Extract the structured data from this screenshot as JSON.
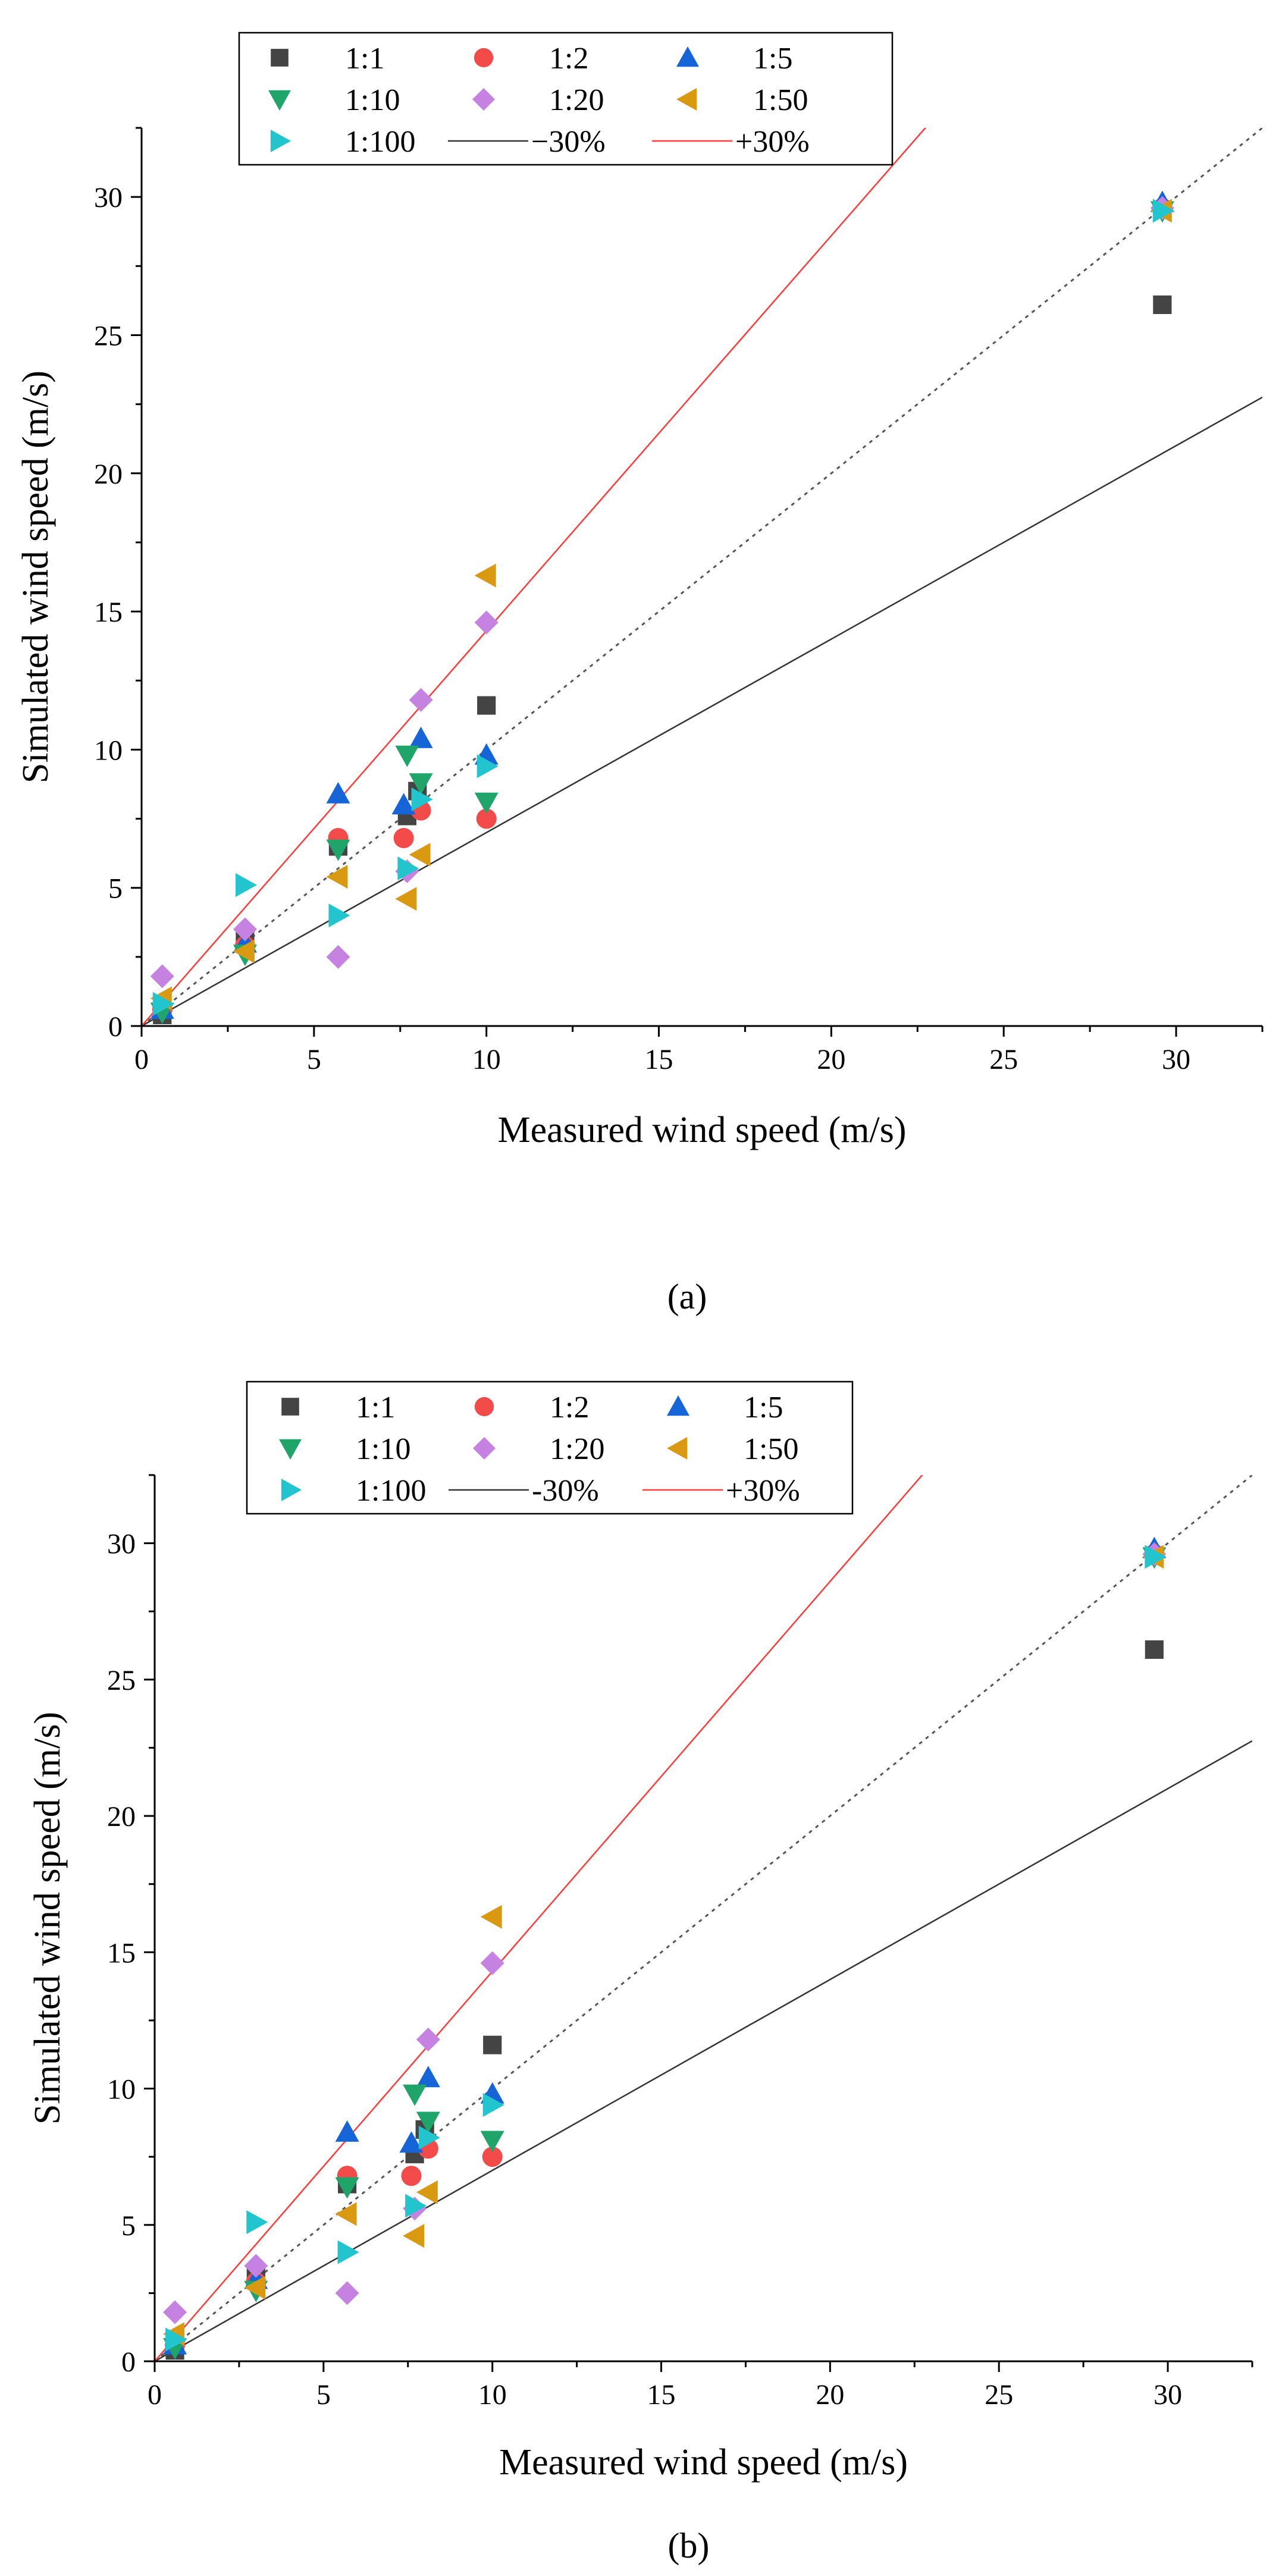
{
  "chart_data": [
    {
      "type": "scatter",
      "panel": "a",
      "caption": "(a)",
      "xlabel": "Measured wind speed (m/s)",
      "ylabel": "Simulated wind speed (m/s)",
      "xlim": [
        0,
        32.5
      ],
      "ylim": [
        0,
        32.5
      ],
      "xticks": [
        0,
        5,
        10,
        15,
        20,
        25,
        30
      ],
      "yticks": [
        0,
        5,
        10,
        15,
        20,
        25,
        30
      ],
      "grid": false,
      "legend_position": "top",
      "legend": [
        "1:1",
        "1:2",
        "1:5",
        "1:10",
        "1:20",
        "1:50",
        "1:100",
        "−30%",
        "+30%"
      ],
      "reference_lines": [
        {
          "name": "1:1 (dotted)",
          "slope": 1.0,
          "color": "#555555",
          "style": "dotted"
        },
        {
          "name": "−30%",
          "slope": 0.7,
          "color": "#333333",
          "style": "solid"
        },
        {
          "name": "+30%",
          "slope": 1.43,
          "color": "#ff3b3b",
          "style": "solid"
        }
      ],
      "series": [
        {
          "name": "1:1",
          "marker": "square",
          "color": "#444444",
          "x": [
            0.6,
            3.0,
            5.7,
            7.7,
            8.0,
            10.0,
            29.6
          ],
          "y": [
            0.4,
            3.1,
            6.5,
            7.6,
            8.5,
            11.6,
            26.1
          ]
        },
        {
          "name": "1:2",
          "marker": "circle",
          "color": "#f34a4a",
          "x": [
            0.6,
            3.0,
            5.7,
            7.6,
            8.1,
            10.0,
            29.6
          ],
          "y": [
            0.6,
            2.9,
            6.8,
            6.8,
            7.8,
            7.5,
            29.6
          ]
        },
        {
          "name": "1:5",
          "marker": "triangle-up",
          "color": "#1565d8",
          "x": [
            0.6,
            3.0,
            5.7,
            7.6,
            8.1,
            10.0,
            29.6
          ],
          "y": [
            0.6,
            3.0,
            8.4,
            8.0,
            10.4,
            9.8,
            29.8
          ]
        },
        {
          "name": "1:10",
          "marker": "triangle-down",
          "color": "#1fa56a",
          "x": [
            0.6,
            3.0,
            5.7,
            7.7,
            8.1,
            10.0,
            29.6
          ],
          "y": [
            0.5,
            2.6,
            6.4,
            9.8,
            8.8,
            8.1,
            29.5
          ]
        },
        {
          "name": "1:20",
          "marker": "diamond",
          "color": "#c582e0",
          "x": [
            0.6,
            3.0,
            5.7,
            7.7,
            8.1,
            10.0,
            29.6
          ],
          "y": [
            1.8,
            3.5,
            2.5,
            5.6,
            11.8,
            14.6,
            29.6
          ]
        },
        {
          "name": "1:50",
          "marker": "triangle-left",
          "color": "#d99a12",
          "x": [
            0.6,
            3.0,
            5.7,
            7.7,
            8.1,
            10.0,
            29.6
          ],
          "y": [
            1.0,
            2.7,
            5.4,
            4.6,
            6.2,
            16.3,
            29.5
          ]
        },
        {
          "name": "1:100",
          "marker": "triangle-right",
          "color": "#22c4cd",
          "x": [
            0.6,
            3.0,
            5.7,
            7.7,
            8.1,
            10.0,
            29.6
          ],
          "y": [
            0.8,
            5.1,
            4.0,
            5.7,
            8.2,
            9.4,
            29.5
          ]
        }
      ]
    },
    {
      "type": "scatter",
      "panel": "b",
      "caption": "(b)",
      "xlabel": "Measured wind speed (m/s)",
      "ylabel": "Simulated wind speed (m/s)",
      "xlim": [
        0,
        32.5
      ],
      "ylim": [
        0,
        32.5
      ],
      "xticks": [
        0,
        5,
        10,
        15,
        20,
        25,
        30
      ],
      "yticks": [
        0,
        5,
        10,
        15,
        20,
        25,
        30
      ],
      "grid": false,
      "legend_position": "top",
      "legend": [
        "1:1",
        "1:2",
        "1:5",
        "1:10",
        "1:20",
        "1:50",
        "1:100",
        "-30%",
        "+30%"
      ],
      "reference_lines": [
        {
          "name": "1:1 (dotted)",
          "slope": 1.0,
          "color": "#555555",
          "style": "dotted"
        },
        {
          "name": "-30%",
          "slope": 0.7,
          "color": "#333333",
          "style": "solid"
        },
        {
          "name": "+30%",
          "slope": 1.43,
          "color": "#ff3b3b",
          "style": "solid"
        }
      ],
      "series": [
        {
          "name": "1:1",
          "marker": "square",
          "color": "#444444",
          "x": [
            0.6,
            3.0,
            5.7,
            7.7,
            8.0,
            10.0,
            29.6
          ],
          "y": [
            0.4,
            3.1,
            6.5,
            7.6,
            8.5,
            11.6,
            26.1
          ]
        },
        {
          "name": "1:2",
          "marker": "circle",
          "color": "#f34a4a",
          "x": [
            0.6,
            3.0,
            5.7,
            7.6,
            8.1,
            10.0,
            29.6
          ],
          "y": [
            0.6,
            2.9,
            6.8,
            6.8,
            7.8,
            7.5,
            29.6
          ]
        },
        {
          "name": "1:5",
          "marker": "triangle-up",
          "color": "#1565d8",
          "x": [
            0.6,
            3.0,
            5.7,
            7.6,
            8.1,
            10.0,
            29.6
          ],
          "y": [
            0.6,
            3.0,
            8.4,
            8.0,
            10.4,
            9.8,
            29.8
          ]
        },
        {
          "name": "1:10",
          "marker": "triangle-down",
          "color": "#1fa56a",
          "x": [
            0.6,
            3.0,
            5.7,
            7.7,
            8.1,
            10.0,
            29.6
          ],
          "y": [
            0.5,
            2.6,
            6.4,
            9.8,
            8.8,
            8.1,
            29.5
          ]
        },
        {
          "name": "1:20",
          "marker": "diamond",
          "color": "#c582e0",
          "x": [
            0.6,
            3.0,
            5.7,
            7.7,
            8.1,
            10.0,
            29.6
          ],
          "y": [
            1.8,
            3.5,
            2.5,
            5.6,
            11.8,
            14.6,
            29.6
          ]
        },
        {
          "name": "1:50",
          "marker": "triangle-left",
          "color": "#d99a12",
          "x": [
            0.6,
            3.0,
            5.7,
            7.7,
            8.1,
            10.0,
            29.6
          ],
          "y": [
            1.0,
            2.7,
            5.4,
            4.6,
            6.2,
            16.3,
            29.5
          ]
        },
        {
          "name": "1:100",
          "marker": "triangle-right",
          "color": "#22c4cd",
          "x": [
            0.6,
            3.0,
            5.7,
            7.7,
            8.1,
            10.0,
            29.6
          ],
          "y": [
            0.8,
            5.1,
            4.0,
            5.7,
            8.2,
            9.4,
            29.5
          ]
        }
      ]
    }
  ]
}
